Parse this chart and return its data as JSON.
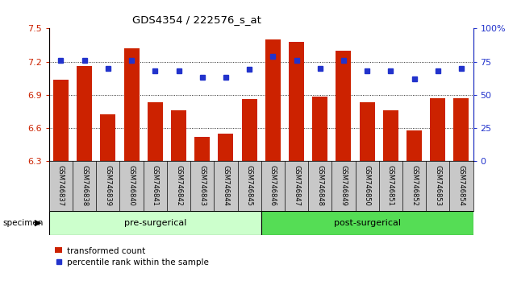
{
  "title": "GDS4354 / 222576_s_at",
  "samples": [
    "GSM746837",
    "GSM746838",
    "GSM746839",
    "GSM746840",
    "GSM746841",
    "GSM746842",
    "GSM746843",
    "GSM746844",
    "GSM746845",
    "GSM746846",
    "GSM746847",
    "GSM746848",
    "GSM746849",
    "GSM746850",
    "GSM746851",
    "GSM746852",
    "GSM746853",
    "GSM746854"
  ],
  "bar_values": [
    7.04,
    7.16,
    6.72,
    7.32,
    6.83,
    6.76,
    6.52,
    6.55,
    6.86,
    7.4,
    7.38,
    6.88,
    7.3,
    6.83,
    6.76,
    6.58,
    6.87,
    6.87
  ],
  "dot_values": [
    76,
    76,
    70,
    76,
    68,
    68,
    63,
    63,
    69,
    79,
    76,
    70,
    76,
    68,
    68,
    62,
    68,
    70
  ],
  "ymin": 6.3,
  "ymax": 7.5,
  "yticks": [
    6.3,
    6.6,
    6.9,
    7.2,
    7.5
  ],
  "right_yticks": [
    0,
    25,
    50,
    75,
    100
  ],
  "bar_color": "#cc2200",
  "dot_color": "#2233cc",
  "pre_surgical_count": 9,
  "post_surgical_count": 9,
  "pre_label": "pre-surgerical",
  "post_label": "post-surgerical",
  "specimen_label": "specimen",
  "legend_bar": "transformed count",
  "legend_dot": "percentile rank within the sample",
  "pre_color": "#ccffcc",
  "post_color": "#55dd55",
  "bg_color": "#c8c8c8",
  "plot_bg": "#ffffff",
  "dotted_lines": [
    7.2,
    6.9,
    6.6
  ]
}
